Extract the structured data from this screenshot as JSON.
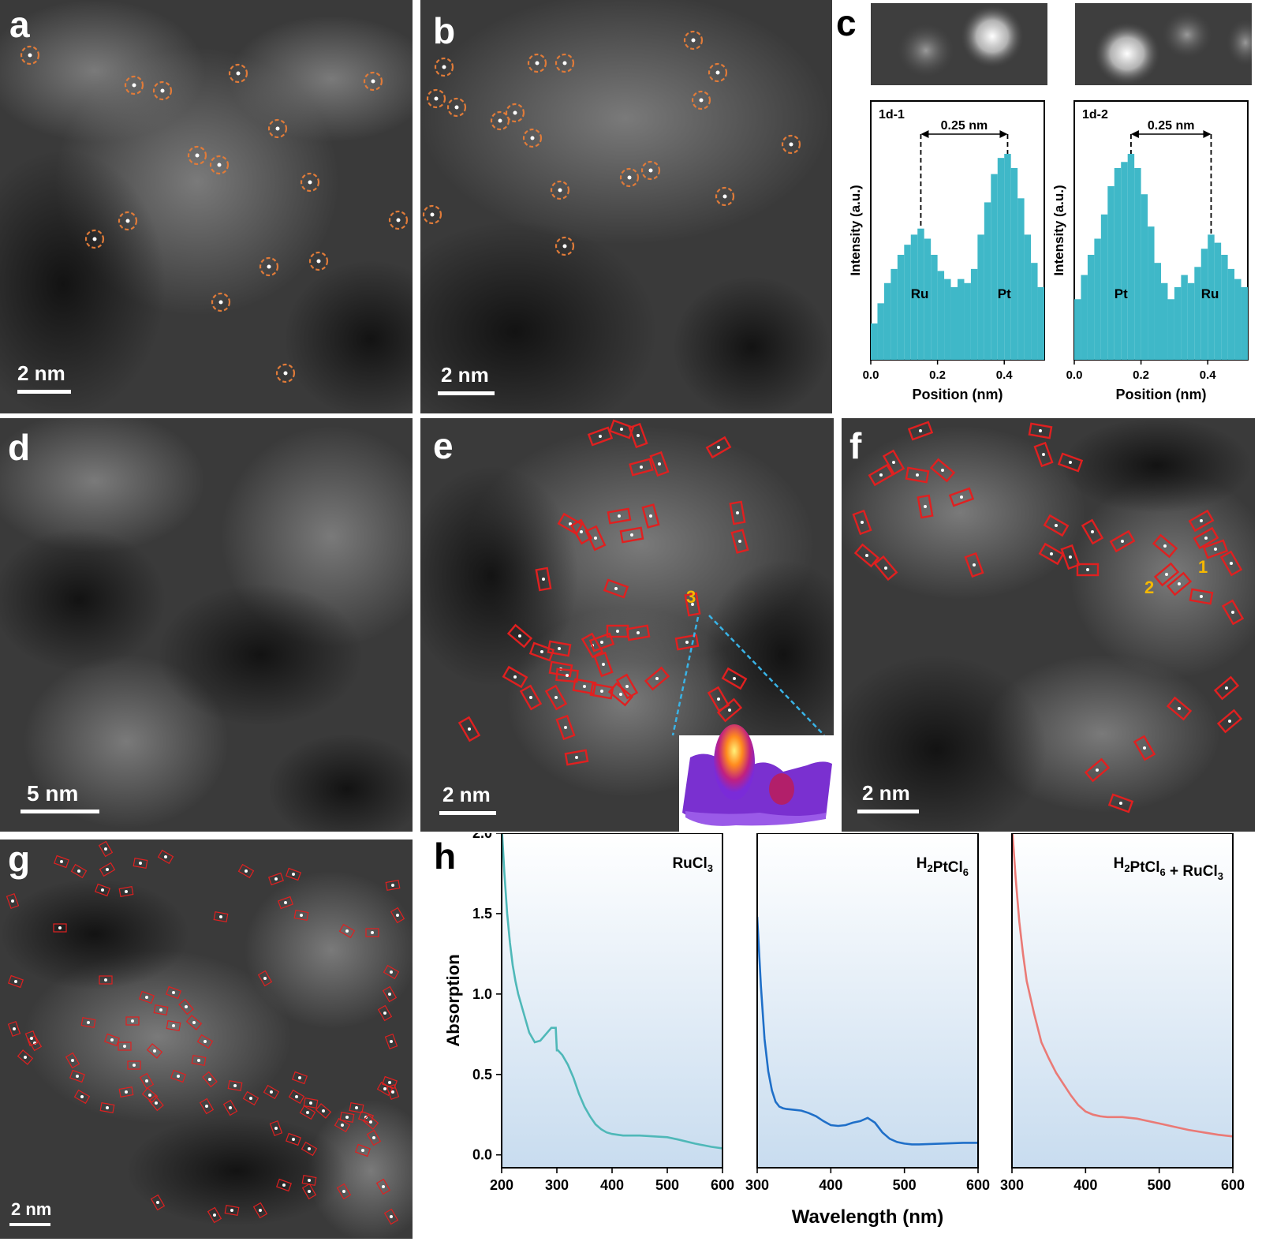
{
  "panels": {
    "a": {
      "label": "a",
      "scale": "2 nm"
    },
    "b": {
      "label": "b",
      "scale": "2 nm"
    },
    "c": {
      "label": "c"
    },
    "d": {
      "label": "d",
      "scale": "5 nm"
    },
    "e": {
      "label": "e",
      "scale": "2 nm",
      "annotation": "3"
    },
    "f": {
      "label": "f",
      "scale": "2 nm",
      "annotation_1": "1",
      "annotation_2": "2"
    },
    "g": {
      "label": "g",
      "scale": "2 nm"
    },
    "h": {
      "label": "h"
    }
  },
  "colors": {
    "circle": "#e07b39",
    "box": "#e02020",
    "annotation": "#f5b800",
    "profile": "#3fb8c8",
    "uv_ru": "#4fb8b8",
    "uv_pt": "#1f6fc8",
    "uv_mix": "#ea7a76",
    "dashed_line": "#39b3e6"
  },
  "chart_data": [
    {
      "type": "bar",
      "title": "1d-1",
      "ylabel": "Intensity (a.u.)",
      "xlabel": "Position (nm)",
      "xlim": [
        0.0,
        0.52
      ],
      "xticks": [
        "0.0",
        "0.2",
        "0.4"
      ],
      "distance_label": "0.25 nm",
      "peak_labels": [
        "Ru",
        "Pt"
      ],
      "x": [
        0.0,
        0.02,
        0.04,
        0.06,
        0.08,
        0.1,
        0.12,
        0.14,
        0.16,
        0.18,
        0.2,
        0.22,
        0.24,
        0.26,
        0.28,
        0.3,
        0.32,
        0.34,
        0.36,
        0.38,
        0.4,
        0.42,
        0.44,
        0.46,
        0.48,
        0.5
      ],
      "values": [
        0.18,
        0.28,
        0.38,
        0.45,
        0.52,
        0.57,
        0.62,
        0.65,
        0.6,
        0.52,
        0.44,
        0.4,
        0.36,
        0.4,
        0.38,
        0.45,
        0.62,
        0.78,
        0.92,
        1.0,
        1.02,
        0.95,
        0.8,
        0.62,
        0.48,
        0.36
      ]
    },
    {
      "type": "bar",
      "title": "1d-2",
      "ylabel": "Intensity (a.u.)",
      "xlabel": "Position (nm)",
      "xlim": [
        0.0,
        0.52
      ],
      "xticks": [
        "0.0",
        "0.2",
        "0.4"
      ],
      "distance_label": "0.25 nm",
      "peak_labels": [
        "Pt",
        "Ru"
      ],
      "x": [
        0.0,
        0.02,
        0.04,
        0.06,
        0.08,
        0.1,
        0.12,
        0.14,
        0.16,
        0.18,
        0.2,
        0.22,
        0.24,
        0.26,
        0.28,
        0.3,
        0.32,
        0.34,
        0.36,
        0.38,
        0.4,
        0.42,
        0.44,
        0.46,
        0.48,
        0.5
      ],
      "values": [
        0.3,
        0.42,
        0.52,
        0.6,
        0.72,
        0.86,
        0.95,
        0.98,
        1.02,
        0.95,
        0.82,
        0.66,
        0.48,
        0.38,
        0.3,
        0.36,
        0.42,
        0.38,
        0.46,
        0.55,
        0.62,
        0.58,
        0.52,
        0.45,
        0.4,
        0.36
      ]
    },
    {
      "type": "line",
      "series_label": "RuCl3",
      "ylabel": "Absorption",
      "xlabel": "Wavelength (nm)",
      "xlim": [
        200,
        600
      ],
      "ylim": [
        -0.08,
        2.0
      ],
      "xticks": [
        "200",
        "300",
        "400",
        "500",
        "600"
      ],
      "yticks": [
        "0.0",
        "0.5",
        "1.0",
        "1.5",
        "2.0"
      ],
      "x": [
        200,
        205,
        210,
        215,
        220,
        225,
        230,
        240,
        250,
        260,
        270,
        280,
        290,
        298,
        300,
        302,
        310,
        320,
        330,
        340,
        350,
        360,
        370,
        380,
        390,
        400,
        420,
        450,
        500,
        520,
        550,
        580,
        600
      ],
      "y": [
        2.05,
        1.75,
        1.5,
        1.32,
        1.18,
        1.08,
        1.0,
        0.88,
        0.76,
        0.7,
        0.71,
        0.75,
        0.79,
        0.79,
        0.65,
        0.65,
        0.62,
        0.56,
        0.48,
        0.38,
        0.3,
        0.24,
        0.19,
        0.16,
        0.14,
        0.13,
        0.12,
        0.12,
        0.11,
        0.095,
        0.07,
        0.05,
        0.04
      ]
    },
    {
      "type": "line",
      "series_label": "H2PtCl6",
      "xlabel": "Wavelength (nm)",
      "xlim": [
        300,
        600
      ],
      "ylim": [
        -0.08,
        2.0
      ],
      "xticks": [
        "300",
        "400",
        "500",
        "600"
      ],
      "x": [
        300,
        305,
        310,
        315,
        320,
        325,
        330,
        335,
        340,
        350,
        360,
        370,
        380,
        390,
        400,
        410,
        420,
        430,
        440,
        450,
        460,
        470,
        480,
        490,
        500,
        510,
        520,
        550,
        580,
        600
      ],
      "y": [
        1.48,
        1.05,
        0.72,
        0.52,
        0.4,
        0.33,
        0.3,
        0.29,
        0.285,
        0.28,
        0.275,
        0.26,
        0.24,
        0.21,
        0.185,
        0.18,
        0.185,
        0.2,
        0.21,
        0.23,
        0.2,
        0.14,
        0.1,
        0.08,
        0.07,
        0.065,
        0.065,
        0.07,
        0.075,
        0.075
      ]
    },
    {
      "type": "line",
      "series_label": "H2PtCl6 + RuCl3",
      "xlabel": "Wavelength (nm)",
      "xlim": [
        300,
        600
      ],
      "ylim": [
        -0.08,
        2.0
      ],
      "xticks": [
        "300",
        "400",
        "500",
        "600"
      ],
      "x": [
        300,
        305,
        310,
        315,
        320,
        330,
        340,
        350,
        360,
        370,
        380,
        390,
        400,
        410,
        420,
        430,
        440,
        450,
        460,
        470,
        480,
        490,
        500,
        520,
        540,
        560,
        580,
        600
      ],
      "y": [
        2.05,
        1.72,
        1.45,
        1.25,
        1.08,
        0.88,
        0.7,
        0.6,
        0.51,
        0.44,
        0.37,
        0.31,
        0.27,
        0.25,
        0.24,
        0.235,
        0.235,
        0.235,
        0.23,
        0.225,
        0.215,
        0.205,
        0.195,
        0.175,
        0.155,
        0.14,
        0.125,
        0.115
      ]
    }
  ],
  "h_axis_label": "Wavelength (nm)"
}
